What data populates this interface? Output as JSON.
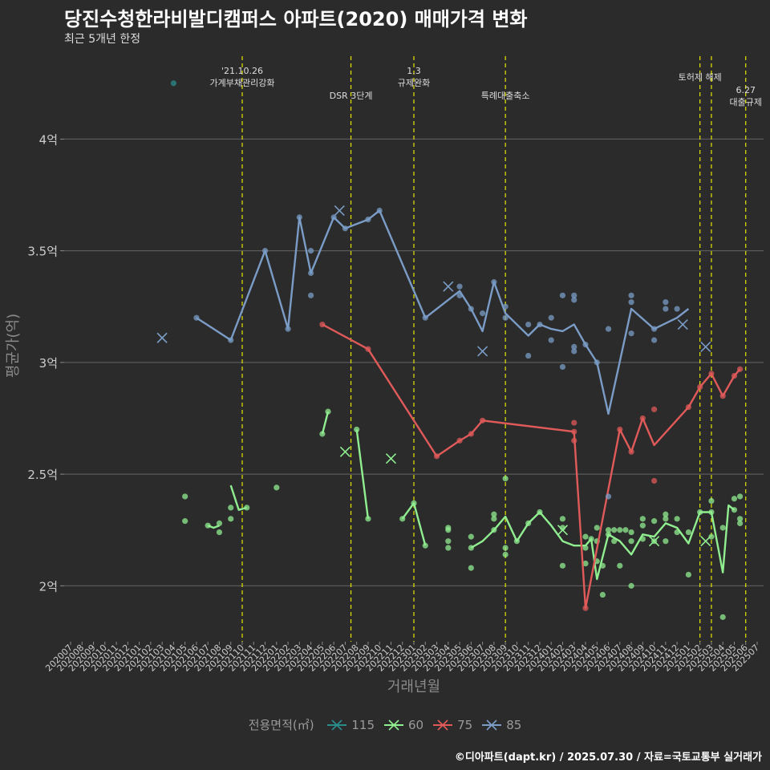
{
  "title": "당진수청한라비발디캠퍼스 아파트(2020) 매매가격 변화",
  "subtitle": "최근 5개년 한정",
  "caption": "©디아파트(dapt.kr) / 2025.07.30 / 자료=국토교통부 실거래가",
  "colors": {
    "background": "#2b2b2b",
    "grid": "#5a5a5a",
    "event_line": "#e6e600",
    "text": "#cccccc",
    "muted": "#8a8a8a"
  },
  "legend": {
    "title": "전용면적(㎡)",
    "placement": "bottom"
  },
  "chart_data": {
    "type": "line",
    "xlabel": "거래년월",
    "ylabel": "평균가(억)",
    "x_categories": [
      "202007",
      "202008",
      "202009",
      "202010",
      "202011",
      "202012",
      "202101",
      "202102",
      "202103",
      "202104",
      "202105",
      "202106",
      "202107",
      "202108",
      "202109",
      "202110",
      "202111",
      "202112",
      "202201",
      "202202",
      "202203",
      "202204",
      "202205",
      "202206",
      "202207",
      "202208",
      "202209",
      "202210",
      "202211",
      "202212",
      "202301",
      "202302",
      "202303",
      "202304",
      "202305",
      "202306",
      "202307",
      "202308",
      "202309",
      "202310",
      "202311",
      "202312",
      "202401",
      "202402",
      "202403",
      "202404",
      "202405",
      "202406",
      "202407",
      "202408",
      "202409",
      "202410",
      "202411",
      "202412",
      "202501",
      "202502",
      "202503",
      "202504",
      "202505",
      "202506",
      "202507"
    ],
    "y_ticks": [
      2.0,
      2.5,
      3.0,
      3.5,
      4.0
    ],
    "y_tick_labels": [
      "2억",
      "2.5억",
      "3억",
      "3.5억",
      "4억"
    ],
    "ylim": [
      1.75,
      4.4
    ],
    "grid": true,
    "events": [
      {
        "x": 15.0,
        "label": "'21.10.26\n가계부채관리강화",
        "row": 1
      },
      {
        "x": 24.5,
        "label": "DSR 3단계",
        "row": 2
      },
      {
        "x": 30.0,
        "label": "1.3\n규제완화",
        "row": 1
      },
      {
        "x": 38.0,
        "label": "특례대출축소",
        "row": 2
      },
      {
        "x": 55.0,
        "label": "토허제 해제",
        "row": 0
      },
      {
        "x": 56.0,
        "label": "",
        "row": 0
      },
      {
        "x": 59.0,
        "label": "6.27\n대출규제",
        "row": 3
      }
    ],
    "series": [
      {
        "name": "115",
        "color": "#2a8c8c",
        "line": [],
        "points": [
          [
            9.0,
            4.25
          ]
        ],
        "crosses": []
      },
      {
        "name": "60",
        "color": "#90ee90",
        "line": [
          [
            14.0,
            2.45
          ],
          [
            14.5,
            2.35
          ],
          [
            15.0,
            2.33
          ],
          [
            15.5,
            2.34
          ]
        ],
        "segments": [
          [
            [
              12.0,
              2.27
            ],
            [
              12.5,
              2.26
            ],
            [
              13.0,
              2.27
            ]
          ],
          [
            [
              14.0,
              2.45
            ],
            [
              14.7,
              2.34
            ],
            [
              15.4,
              2.35
            ]
          ],
          [
            [
              22.0,
              2.68
            ],
            [
              22.5,
              2.78
            ]
          ],
          [
            [
              25.0,
              2.7
            ],
            [
              26.0,
              2.3
            ]
          ],
          [
            [
              29.0,
              2.3
            ],
            [
              30.0,
              2.37
            ],
            [
              31.0,
              2.18
            ]
          ],
          [
            [
              35.0,
              2.17
            ],
            [
              36.0,
              2.2
            ],
            [
              37.0,
              2.25
            ],
            [
              38.0,
              2.31
            ],
            [
              39.0,
              2.2
            ],
            [
              40.0,
              2.28
            ],
            [
              41.0,
              2.33
            ],
            [
              42.0,
              2.27
            ],
            [
              43.0,
              2.2
            ],
            [
              44.0,
              2.18
            ],
            [
              45.0,
              2.18
            ],
            [
              45.5,
              2.21
            ],
            [
              46.0,
              2.03
            ],
            [
              47.0,
              2.23
            ],
            [
              48.0,
              2.2
            ],
            [
              49.0,
              2.14
            ],
            [
              50.0,
              2.23
            ],
            [
              51.0,
              2.22
            ],
            [
              52.0,
              2.28
            ],
            [
              53.0,
              2.26
            ],
            [
              54.0,
              2.19
            ],
            [
              55.0,
              2.33
            ],
            [
              56.0,
              2.33
            ],
            [
              57.0,
              2.06
            ],
            [
              57.5,
              2.36
            ],
            [
              58.0,
              2.34
            ]
          ]
        ],
        "points": [
          [
            10.0,
            2.4
          ],
          [
            10.0,
            2.29
          ],
          [
            12.0,
            2.27
          ],
          [
            13.0,
            2.28
          ],
          [
            13.0,
            2.24
          ],
          [
            14.0,
            2.3
          ],
          [
            14.0,
            2.35
          ],
          [
            15.4,
            2.35
          ],
          [
            18.0,
            2.44
          ],
          [
            22.0,
            2.68
          ],
          [
            22.5,
            2.78
          ],
          [
            25.0,
            2.7
          ],
          [
            26.0,
            2.3
          ],
          [
            29.0,
            2.3
          ],
          [
            30.0,
            2.37
          ],
          [
            31.0,
            2.18
          ],
          [
            33.0,
            2.26
          ],
          [
            33.0,
            2.2
          ],
          [
            33.0,
            2.25
          ],
          [
            33.0,
            2.17
          ],
          [
            35.0,
            2.17
          ],
          [
            35.0,
            2.22
          ],
          [
            35.0,
            2.08
          ],
          [
            37.0,
            2.25
          ],
          [
            37.0,
            2.3
          ],
          [
            37.0,
            2.32
          ],
          [
            38.0,
            2.48
          ],
          [
            38.0,
            2.17
          ],
          [
            38.0,
            2.14
          ],
          [
            39.0,
            2.2
          ],
          [
            40.0,
            2.28
          ],
          [
            41.0,
            2.33
          ],
          [
            43.0,
            2.3
          ],
          [
            43.0,
            2.26
          ],
          [
            43.0,
            2.09
          ],
          [
            45.0,
            2.17
          ],
          [
            45.0,
            2.22
          ],
          [
            45.0,
            2.1
          ],
          [
            45.5,
            2.21
          ],
          [
            46.0,
            2.26
          ],
          [
            46.0,
            2.2
          ],
          [
            46.0,
            2.11
          ],
          [
            46.5,
            2.09
          ],
          [
            46.5,
            1.96
          ],
          [
            47.0,
            2.25
          ],
          [
            47.0,
            2.23
          ],
          [
            47.5,
            2.2
          ],
          [
            47.5,
            2.25
          ],
          [
            48.0,
            2.25
          ],
          [
            48.0,
            2.09
          ],
          [
            48.5,
            2.25
          ],
          [
            49.0,
            2.2
          ],
          [
            49.0,
            2.24
          ],
          [
            49.0,
            2.0
          ],
          [
            50.0,
            2.3
          ],
          [
            50.0,
            2.21
          ],
          [
            50.0,
            2.27
          ],
          [
            51.0,
            2.29
          ],
          [
            51.0,
            2.2
          ],
          [
            52.0,
            2.32
          ],
          [
            52.0,
            2.3
          ],
          [
            52.0,
            2.2
          ],
          [
            53.0,
            2.3
          ],
          [
            53.0,
            2.24
          ],
          [
            54.0,
            2.24
          ],
          [
            54.0,
            2.05
          ],
          [
            55.0,
            2.33
          ],
          [
            56.0,
            2.38
          ],
          [
            56.0,
            2.33
          ],
          [
            56.0,
            2.22
          ],
          [
            57.0,
            2.26
          ],
          [
            57.0,
            1.86
          ],
          [
            58.0,
            2.39
          ],
          [
            58.0,
            2.34
          ],
          [
            58.5,
            2.4
          ],
          [
            58.5,
            2.3
          ],
          [
            58.5,
            2.28
          ]
        ],
        "crosses": [
          [
            24.0,
            2.6
          ],
          [
            28.0,
            2.57
          ],
          [
            43.0,
            2.25
          ],
          [
            51.0,
            2.2
          ],
          [
            55.5,
            2.2
          ]
        ]
      },
      {
        "name": "75",
        "color": "#e05a5a",
        "segments": [
          [
            [
              22.0,
              3.17
            ],
            [
              26.0,
              3.06
            ],
            [
              32.0,
              2.58
            ],
            [
              34.0,
              2.65
            ],
            [
              35.0,
              2.68
            ],
            [
              36.0,
              2.74
            ],
            [
              44.0,
              2.69
            ],
            [
              45.0,
              1.9
            ],
            [
              48.0,
              2.7
            ],
            [
              49.0,
              2.6
            ],
            [
              50.0,
              2.75
            ],
            [
              51.0,
              2.63
            ],
            [
              54.0,
              2.8
            ],
            [
              55.0,
              2.89
            ],
            [
              56.0,
              2.95
            ],
            [
              57.0,
              2.85
            ],
            [
              58.0,
              2.94
            ],
            [
              58.5,
              2.97
            ]
          ]
        ],
        "points": [
          [
            22.0,
            3.17
          ],
          [
            26.0,
            3.06
          ],
          [
            32.0,
            2.58
          ],
          [
            34.0,
            2.65
          ],
          [
            35.0,
            2.68
          ],
          [
            36.0,
            2.74
          ],
          [
            44.0,
            2.73
          ],
          [
            44.0,
            2.69
          ],
          [
            44.0,
            2.65
          ],
          [
            45.0,
            1.9
          ],
          [
            48.0,
            2.7
          ],
          [
            49.0,
            2.6
          ],
          [
            50.0,
            2.75
          ],
          [
            51.0,
            2.79
          ],
          [
            51.0,
            2.47
          ],
          [
            54.0,
            2.8
          ],
          [
            55.0,
            2.89
          ],
          [
            56.0,
            2.95
          ],
          [
            57.0,
            2.85
          ],
          [
            58.0,
            2.94
          ],
          [
            58.5,
            2.97
          ]
        ],
        "crosses": []
      },
      {
        "name": "85",
        "color": "#7a9cc6",
        "segments": [
          [
            [
              11.0,
              3.2
            ],
            [
              14.0,
              3.1
            ],
            [
              17.0,
              3.5
            ],
            [
              19.0,
              3.15
            ],
            [
              20.0,
              3.65
            ],
            [
              21.0,
              3.4
            ],
            [
              23.0,
              3.65
            ],
            [
              24.0,
              3.6
            ],
            [
              26.0,
              3.64
            ],
            [
              27.0,
              3.68
            ],
            [
              31.0,
              3.2
            ],
            [
              34.0,
              3.32
            ],
            [
              35.0,
              3.24
            ],
            [
              36.0,
              3.14
            ],
            [
              37.0,
              3.36
            ],
            [
              38.0,
              3.22
            ],
            [
              40.0,
              3.12
            ],
            [
              41.0,
              3.17
            ],
            [
              42.0,
              3.15
            ],
            [
              43.0,
              3.14
            ],
            [
              44.0,
              3.17
            ],
            [
              45.0,
              3.08
            ],
            [
              46.0,
              3.0
            ],
            [
              47.0,
              2.77
            ],
            [
              49.0,
              3.24
            ],
            [
              51.0,
              3.15
            ],
            [
              53.0,
              3.2
            ],
            [
              54.0,
              3.24
            ]
          ]
        ],
        "points": [
          [
            11.0,
            3.2
          ],
          [
            14.0,
            3.1
          ],
          [
            17.0,
            3.5
          ],
          [
            19.0,
            3.15
          ],
          [
            20.0,
            3.65
          ],
          [
            21.0,
            3.5
          ],
          [
            21.0,
            3.3
          ],
          [
            21.0,
            3.4
          ],
          [
            23.0,
            3.65
          ],
          [
            24.0,
            3.6
          ],
          [
            26.0,
            3.64
          ],
          [
            27.0,
            3.68
          ],
          [
            31.0,
            3.2
          ],
          [
            34.0,
            3.34
          ],
          [
            34.0,
            3.3
          ],
          [
            35.0,
            3.24
          ],
          [
            36.0,
            3.22
          ],
          [
            37.0,
            3.36
          ],
          [
            38.0,
            3.25
          ],
          [
            38.0,
            3.2
          ],
          [
            40.0,
            3.17
          ],
          [
            40.0,
            3.03
          ],
          [
            41.0,
            3.17
          ],
          [
            42.0,
            3.2
          ],
          [
            42.0,
            3.1
          ],
          [
            43.0,
            3.3
          ],
          [
            43.0,
            2.98
          ],
          [
            44.0,
            3.3
          ],
          [
            44.0,
            3.28
          ],
          [
            44.0,
            3.07
          ],
          [
            44.0,
            3.05
          ],
          [
            45.0,
            3.08
          ],
          [
            46.0,
            3.0
          ],
          [
            47.0,
            3.15
          ],
          [
            47.0,
            2.4
          ],
          [
            49.0,
            3.3
          ],
          [
            49.0,
            3.27
          ],
          [
            49.0,
            3.13
          ],
          [
            51.0,
            3.15
          ],
          [
            51.0,
            3.1
          ],
          [
            52.0,
            3.27
          ],
          [
            52.0,
            3.24
          ],
          [
            53.0,
            3.24
          ]
        ],
        "crosses": [
          [
            8.0,
            3.11
          ],
          [
            23.5,
            3.68
          ],
          [
            33.0,
            3.34
          ],
          [
            36.0,
            3.05
          ],
          [
            53.5,
            3.17
          ],
          [
            55.5,
            3.07
          ]
        ]
      }
    ]
  }
}
